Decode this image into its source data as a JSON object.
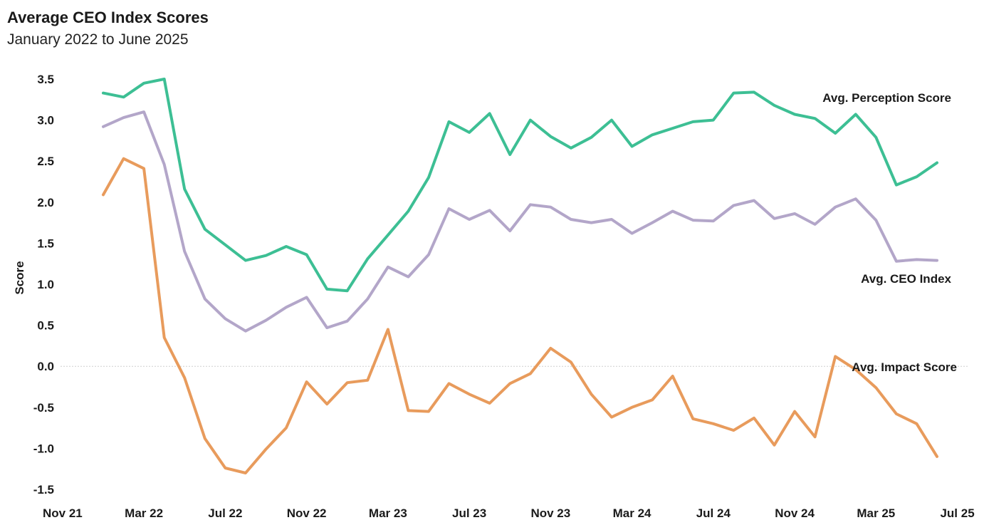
{
  "chart_data": {
    "type": "line",
    "title": "Average CEO Index Scores",
    "subtitle": "January 2022 to June 2025",
    "xlabel": "",
    "ylabel": "Score",
    "ylim": [
      -1.5,
      3.5
    ],
    "yticks": [
      "3.5",
      "3.0",
      "2.5",
      "2.0",
      "1.5",
      "1.0",
      "0.5",
      "0.0",
      "-0.5",
      "-1.0",
      "-1.5"
    ],
    "xticks": [
      "Nov 21",
      "Mar 22",
      "Jul 22",
      "Nov 22",
      "Mar 23",
      "Jul 23",
      "Nov 23",
      "Mar 24",
      "Jul 24",
      "Nov 24",
      "Mar 25",
      "Jul 25"
    ],
    "x_start": "2022-01",
    "x_end": "2025-06",
    "grid": false,
    "zero_line": true,
    "series": [
      {
        "name": "Avg. Perception Score",
        "color": "#3dbf94",
        "values": [
          3.33,
          3.28,
          3.45,
          3.5,
          2.16,
          1.67,
          1.48,
          1.29,
          1.35,
          1.46,
          1.36,
          0.94,
          0.92,
          1.31,
          1.6,
          1.89,
          2.3,
          2.98,
          2.85,
          3.08,
          2.58,
          3.0,
          2.8,
          2.66,
          2.79,
          3.0,
          2.68,
          2.82,
          2.9,
          2.98,
          3.0,
          3.33,
          3.34,
          3.18,
          3.07,
          3.02,
          2.84,
          3.07,
          2.79,
          2.21,
          2.31,
          2.48
        ]
      },
      {
        "name": "Avg. CEO Index",
        "color": "#b3a6c9",
        "values": [
          2.92,
          3.03,
          3.1,
          2.46,
          1.4,
          0.82,
          0.58,
          0.43,
          0.56,
          0.72,
          0.84,
          0.47,
          0.55,
          0.82,
          1.21,
          1.09,
          1.36,
          1.92,
          1.79,
          1.9,
          1.65,
          1.97,
          1.94,
          1.79,
          1.75,
          1.79,
          1.62,
          1.75,
          1.89,
          1.78,
          1.77,
          1.96,
          2.02,
          1.8,
          1.86,
          1.73,
          1.94,
          2.04,
          1.78,
          1.28,
          1.3,
          1.29
        ]
      },
      {
        "name": "Avg. Impact Score",
        "color": "#e89b5c",
        "values": [
          2.09,
          2.53,
          2.41,
          0.35,
          -0.14,
          -0.88,
          -1.24,
          -1.3,
          -1.01,
          -0.75,
          -0.19,
          -0.46,
          -0.2,
          -0.17,
          0.45,
          -0.54,
          -0.55,
          -0.21,
          -0.34,
          -0.45,
          -0.21,
          -0.09,
          0.22,
          0.05,
          -0.34,
          -0.62,
          -0.5,
          -0.41,
          -0.12,
          -0.64,
          -0.7,
          -0.78,
          -0.63,
          -0.96,
          -0.55,
          -0.86,
          0.12,
          -0.04,
          -0.26,
          -0.58,
          -0.7,
          -1.1
        ]
      }
    ]
  }
}
